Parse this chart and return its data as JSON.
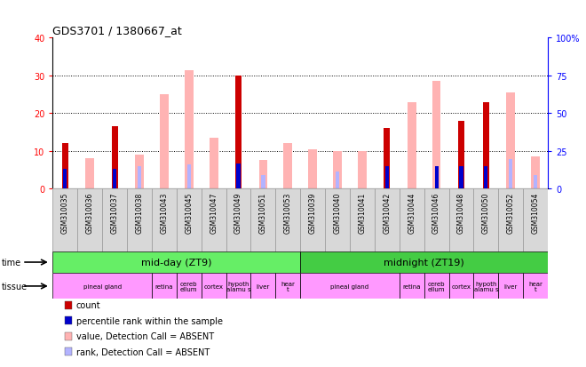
{
  "title": "GDS3701 / 1380667_at",
  "samples": [
    "GSM310035",
    "GSM310036",
    "GSM310037",
    "GSM310038",
    "GSM310043",
    "GSM310045",
    "GSM310047",
    "GSM310049",
    "GSM310051",
    "GSM310053",
    "GSM310039",
    "GSM310040",
    "GSM310041",
    "GSM310042",
    "GSM310044",
    "GSM310046",
    "GSM310048",
    "GSM310050",
    "GSM310052",
    "GSM310054"
  ],
  "count_values": [
    12,
    0,
    16.5,
    0,
    0,
    0,
    0,
    30,
    0,
    0,
    0,
    0,
    0,
    16,
    0,
    0,
    18,
    23,
    0,
    0
  ],
  "rank_values": [
    13,
    0,
    13,
    0,
    0,
    0,
    0,
    16.5,
    0,
    0,
    0,
    0,
    0,
    15,
    0,
    15,
    15,
    15,
    0,
    0
  ],
  "absent_value": [
    0,
    8,
    0,
    9,
    25,
    31.5,
    13.5,
    0,
    7.5,
    12,
    10.5,
    10,
    10,
    0,
    23,
    28.5,
    0,
    0,
    25.5,
    8.5
  ],
  "absent_rank": [
    0,
    0,
    0,
    15,
    0,
    16,
    0,
    0,
    9,
    0,
    0,
    11.5,
    0,
    15.5,
    0,
    0,
    0,
    0,
    19.5,
    9
  ],
  "ylim_left": [
    0,
    40
  ],
  "ylim_right": [
    0,
    100
  ],
  "yticks_left": [
    0,
    10,
    20,
    30,
    40
  ],
  "yticks_right": [
    0,
    25,
    50,
    75,
    100
  ],
  "color_count": "#cc0000",
  "color_rank": "#0000cc",
  "color_absent_value": "#ffb3b3",
  "color_absent_rank": "#b3b3ff",
  "time_groups": [
    {
      "label": "mid-day (ZT9)",
      "start": 0,
      "end": 9,
      "color": "#66ee66"
    },
    {
      "label": "midnight (ZT19)",
      "start": 10,
      "end": 19,
      "color": "#44cc44"
    }
  ],
  "tissue_groups": [
    {
      "label": "pineal gland",
      "start": 0,
      "end": 3
    },
    {
      "label": "retina",
      "start": 4,
      "end": 4
    },
    {
      "label": "cereb\nellum",
      "start": 5,
      "end": 5
    },
    {
      "label": "cortex",
      "start": 6,
      "end": 6
    },
    {
      "label": "hypoth\nalamu s",
      "start": 7,
      "end": 7
    },
    {
      "label": "liver",
      "start": 8,
      "end": 8
    },
    {
      "label": "hear\nt",
      "start": 9,
      "end": 9
    },
    {
      "label": "pineal gland",
      "start": 10,
      "end": 13
    },
    {
      "label": "retina",
      "start": 14,
      "end": 14
    },
    {
      "label": "cereb\nellum",
      "start": 15,
      "end": 15
    },
    {
      "label": "cortex",
      "start": 16,
      "end": 16
    },
    {
      "label": "hypoth\nalamu s",
      "start": 17,
      "end": 17
    },
    {
      "label": "liver",
      "start": 18,
      "end": 18
    },
    {
      "label": "hear\nt",
      "start": 19,
      "end": 19
    }
  ],
  "legend_items": [
    {
      "color": "#cc0000",
      "label": "count"
    },
    {
      "color": "#0000cc",
      "label": "percentile rank within the sample"
    },
    {
      "color": "#ffb3b3",
      "label": "value, Detection Call = ABSENT"
    },
    {
      "color": "#b3b3ff",
      "label": "rank, Detection Call = ABSENT"
    }
  ],
  "title_fontsize": 9,
  "axis_fontsize": 7,
  "legend_fontsize": 7,
  "sample_fontsize": 5.5
}
